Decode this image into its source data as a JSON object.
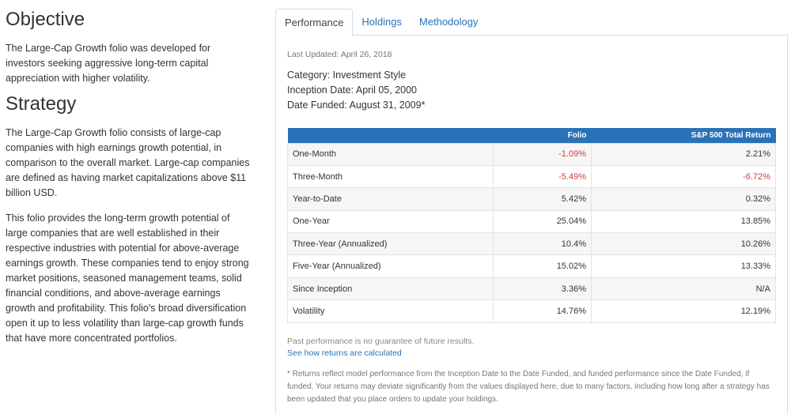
{
  "objective": {
    "title": "Objective",
    "text": "The Large-Cap Growth folio was developed for investors seeking aggressive long-term capital appreciation with higher volatility."
  },
  "strategy": {
    "title": "Strategy",
    "p1": "The Large-Cap Growth folio consists of large-cap companies with high earnings growth potential, in comparison to the overall market. Large-cap companies are defined as having market capitalizations above $11 billion USD.",
    "p2": "This folio provides the long-term growth potential of large companies that are well established in their respective industries with potential for above-average earnings growth. These companies tend to enjoy strong market positions, seasoned management teams, solid financial conditions, and above-average earnings growth and profitability. This folio's broad diversification open it up to less volatility than large-cap growth funds that have more concentrated portfolios."
  },
  "tabs": [
    {
      "label": "Performance",
      "active": true
    },
    {
      "label": "Holdings",
      "active": false
    },
    {
      "label": "Methodology",
      "active": false
    }
  ],
  "performance": {
    "last_updated": "Last Updated: April 26, 2018",
    "category": "Category: Investment Style",
    "inception": "Inception Date: April 05, 2000",
    "funded": "Date Funded: August 31, 2009*",
    "table": {
      "header": {
        "metric": "",
        "folio": "Folio",
        "sp": "S&P 500 Total Return"
      },
      "rows": [
        {
          "label": "One-Month",
          "folio": "-1.09%",
          "sp": "2.21%",
          "folio_neg": true,
          "sp_neg": false
        },
        {
          "label": "Three-Month",
          "folio": "-5.49%",
          "sp": "-6.72%",
          "folio_neg": true,
          "sp_neg": true
        },
        {
          "label": "Year-to-Date",
          "folio": "5.42%",
          "sp": "0.32%",
          "folio_neg": false,
          "sp_neg": false
        },
        {
          "label": "One-Year",
          "folio": "25.04%",
          "sp": "13.85%",
          "folio_neg": false,
          "sp_neg": false
        },
        {
          "label": "Three-Year (Annualized)",
          "folio": "10.4%",
          "sp": "10.26%",
          "folio_neg": false,
          "sp_neg": false
        },
        {
          "label": "Five-Year (Annualized)",
          "folio": "15.02%",
          "sp": "13.33%",
          "folio_neg": false,
          "sp_neg": false
        },
        {
          "label": "Since Inception",
          "folio": "3.36%",
          "sp": "N/A",
          "folio_neg": false,
          "sp_neg": false
        },
        {
          "label": "Volatility",
          "folio": "14.76%",
          "sp": "12.19%",
          "folio_neg": false,
          "sp_neg": false
        }
      ]
    },
    "disclaimer": "Past performance is no guarantee of future results.",
    "how_link": "See how returns are calculated",
    "footnote": "* Returns reflect model performance from the Inception Date to the Date Funded, and funded performance since the Date Funded, if funded. Your returns may deviate significantly from the values displayed here, due to many factors, including how long after a strategy has been updated that you place orders to update your holdings."
  },
  "colors": {
    "accent": "#2a72b8",
    "negative": "#d63a3a"
  }
}
